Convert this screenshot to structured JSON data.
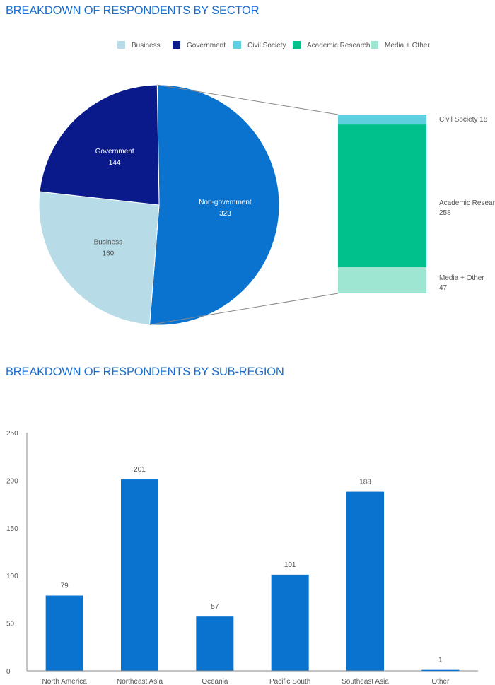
{
  "colors": {
    "title": "#1a6dcc",
    "business": "#b8dbe8",
    "government": "#0a1a8a",
    "civil_society": "#5ecfdf",
    "academic_research": "#00c08c",
    "media_other": "#9fe6d2",
    "non_government": "#0a73d0",
    "bar": "#0a73d0",
    "axis": "#888888"
  },
  "chart_data": [
    {
      "type": "pie",
      "title": "BREAKDOWN OF RESPONDENTS BY SECTOR",
      "legend": {
        "placement": "top",
        "entries": [
          "Business",
          "Government",
          "Civil Society",
          "Academic Research",
          "Media + Other"
        ]
      },
      "slices": [
        {
          "label": "Non-government",
          "value": 323
        },
        {
          "label": "Business",
          "value": 160
        },
        {
          "label": "Government",
          "value": 144
        }
      ],
      "breakdown": {
        "of": "Non-government",
        "segments": [
          {
            "label": "Civil Society",
            "value": 18
          },
          {
            "label": "Academic Research",
            "value": 258
          },
          {
            "label": "Media + Other",
            "value": 47
          }
        ]
      }
    },
    {
      "type": "bar",
      "title": "BREAKDOWN OF RESPONDENTS BY SUB-REGION",
      "categories": [
        "North America",
        "Northeast Asia",
        "Oceania",
        "Pacific South",
        "Southeast Asia",
        "Other"
      ],
      "values": [
        79,
        201,
        57,
        101,
        188,
        1
      ],
      "ylim": [
        0,
        250
      ],
      "yticks": [
        "0",
        "50",
        "100",
        "150",
        "200",
        "250"
      ],
      "grid": false,
      "data_labels": true
    }
  ]
}
